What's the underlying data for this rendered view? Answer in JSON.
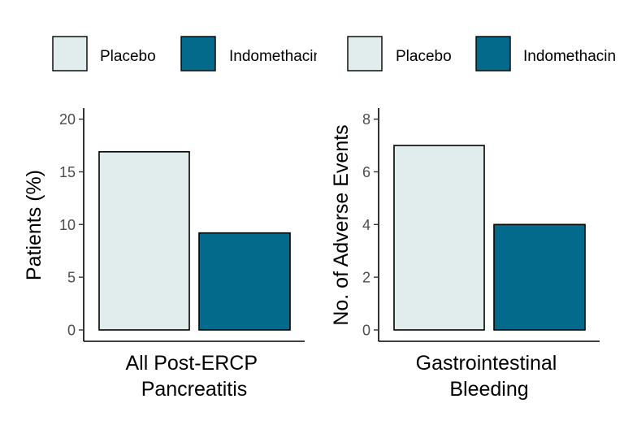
{
  "chart_data": [
    {
      "type": "bar",
      "categories": [
        "All Post-ERCP Pancreatitis"
      ],
      "category_lines": [
        "All Post-ERCP",
        "Pancreatitis"
      ],
      "series": [
        {
          "name": "Placebo",
          "values": [
            16.9
          ],
          "color": "#e1eded"
        },
        {
          "name": "Indomethacin",
          "values": [
            9.2
          ],
          "color": "#046a8c"
        }
      ],
      "xlabel": "",
      "ylabel": "Patients (%)",
      "ylim": [
        0,
        20
      ],
      "yticks": [
        0,
        5,
        10,
        15,
        20
      ],
      "legend_position": "top",
      "legend_labels": [
        "Placebo",
        "Indomethacin"
      ],
      "grid": false
    },
    {
      "type": "bar",
      "categories": [
        "Gastrointestinal Bleeding"
      ],
      "category_lines": [
        "Gastrointestinal",
        "Bleeding"
      ],
      "series": [
        {
          "name": "Placebo",
          "values": [
            7
          ],
          "color": "#e1eded"
        },
        {
          "name": "Indomethacin",
          "values": [
            4
          ],
          "color": "#046a8c"
        }
      ],
      "xlabel": "",
      "ylabel": "No. of Adverse Events",
      "ylim": [
        0,
        8
      ],
      "yticks": [
        0,
        2,
        4,
        6,
        8
      ],
      "legend_position": "top",
      "legend_labels": [
        "Placebo",
        "Indomethacin"
      ],
      "grid": false
    }
  ]
}
